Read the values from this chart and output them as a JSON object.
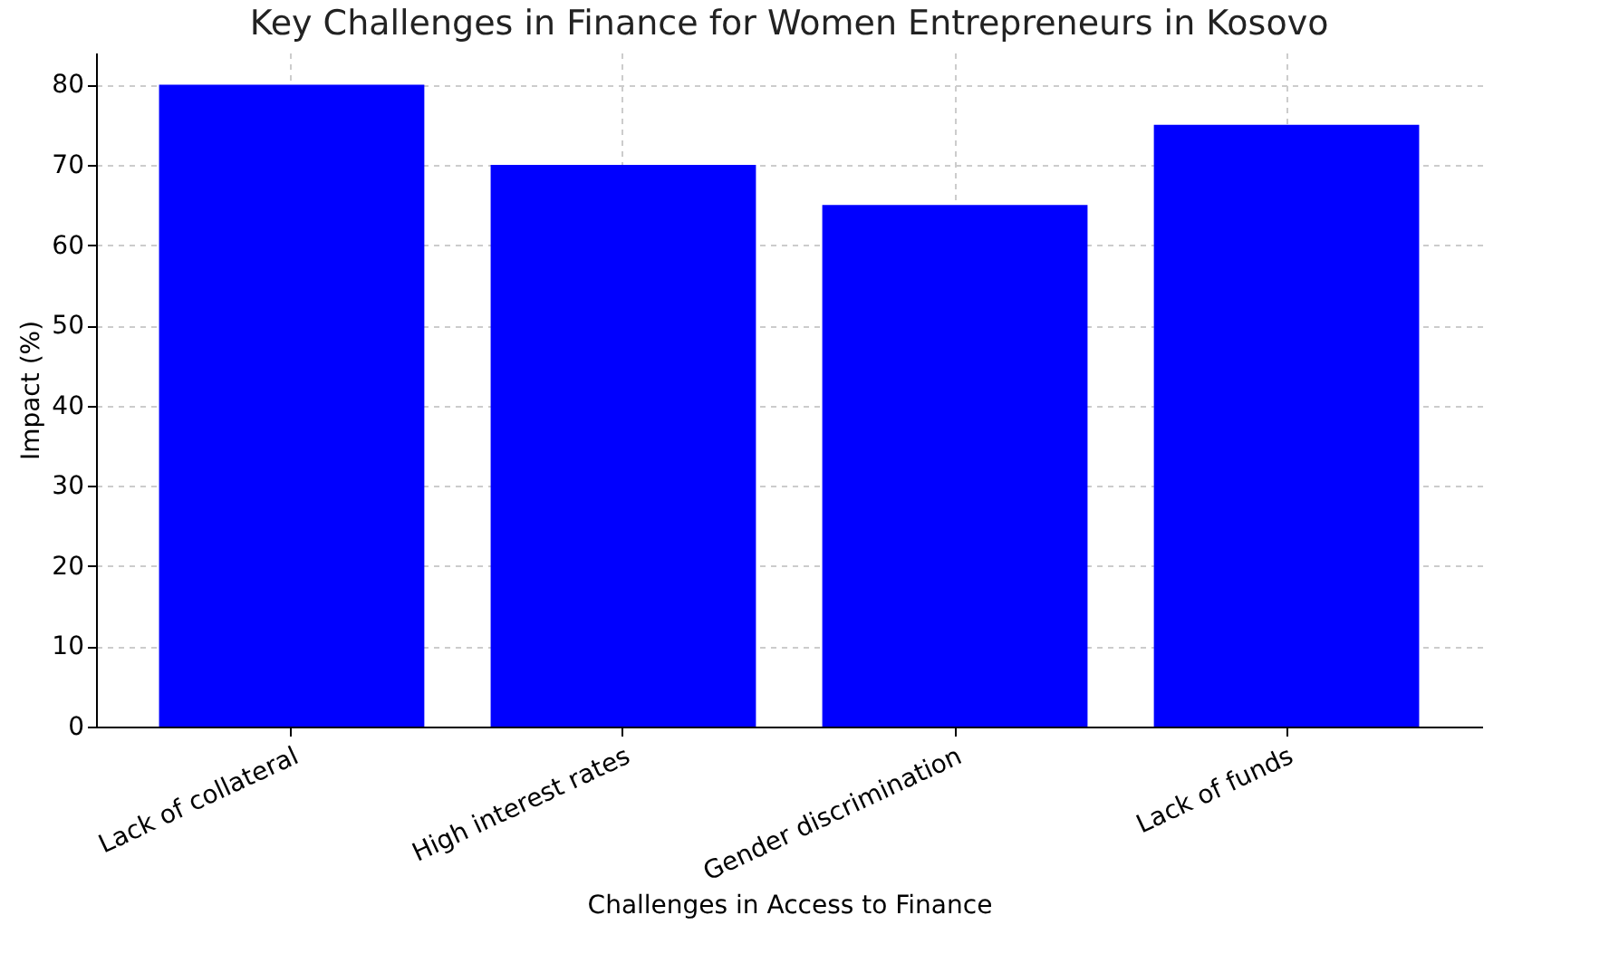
{
  "chart_data": {
    "type": "bar",
    "title": "Key Challenges in Finance for Women Entrepreneurs in Kosovo",
    "xlabel": "Challenges in Access to Finance",
    "ylabel": "Impact (%)",
    "categories": [
      "Lack of collateral",
      "High interest rates",
      "Gender discrimination",
      "Lack of funds"
    ],
    "values": [
      80,
      70,
      65,
      75
    ],
    "color": "#0000ff",
    "ylim": [
      0,
      84
    ],
    "yticks": [
      0,
      10,
      20,
      30,
      40,
      50,
      60,
      70,
      80
    ],
    "grid": true
  }
}
